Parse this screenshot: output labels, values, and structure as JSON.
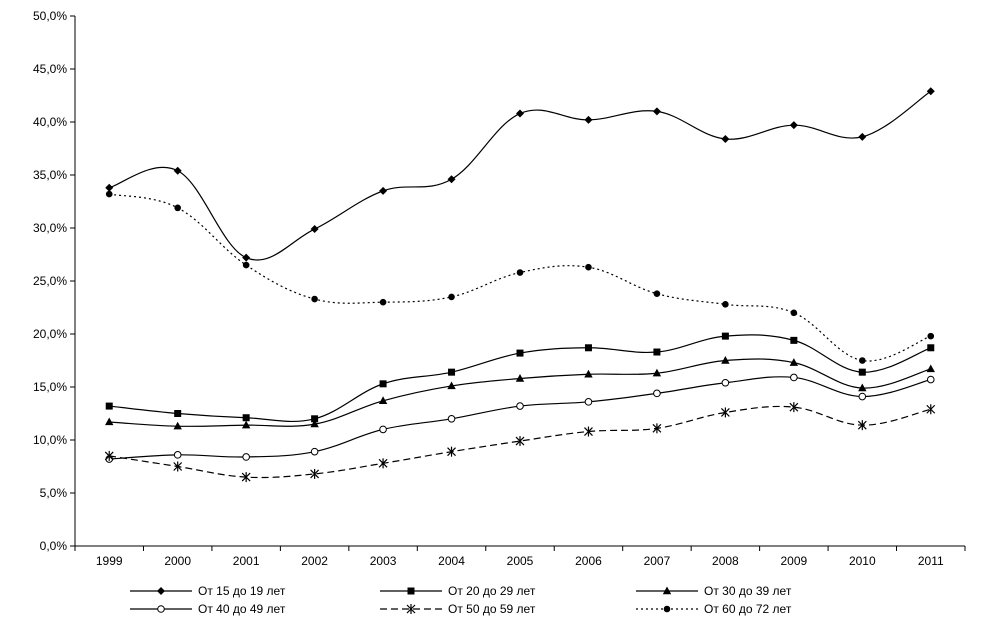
{
  "chart_data": {
    "type": "line",
    "title": "",
    "xlabel": "",
    "ylabel": "",
    "x": [
      "1999",
      "2000",
      "2001",
      "2002",
      "2003",
      "2004",
      "2005",
      "2006",
      "2007",
      "2008",
      "2009",
      "2010",
      "2011"
    ],
    "ylim": [
      0,
      50
    ],
    "yticks": [
      "0,0%",
      "5,0%",
      "10,0%",
      "15,0%",
      "20,0%",
      "25,0%",
      "30,0%",
      "35,0%",
      "40,0%",
      "45,0%",
      "50,0%"
    ],
    "grid": false,
    "legend_position": "bottom",
    "series": [
      {
        "name": "От 15 до 19 лет",
        "marker": "diamond",
        "dash": "solid",
        "values": [
          33.8,
          35.4,
          27.2,
          29.9,
          33.5,
          34.6,
          40.8,
          40.2,
          41.0,
          38.4,
          39.7,
          38.6,
          42.9
        ]
      },
      {
        "name": "От 20 до 29 лет",
        "marker": "square",
        "dash": "solid",
        "values": [
          13.2,
          12.5,
          12.1,
          12.0,
          15.3,
          16.4,
          18.2,
          18.7,
          18.3,
          19.8,
          19.4,
          16.4,
          18.7
        ]
      },
      {
        "name": "От 30 до 39 лет",
        "marker": "triangle",
        "dash": "solid",
        "values": [
          11.7,
          11.3,
          11.4,
          11.5,
          13.7,
          15.1,
          15.8,
          16.2,
          16.3,
          17.5,
          17.3,
          14.9,
          16.7
        ]
      },
      {
        "name": "От 40 до 49 лет",
        "marker": "circle-open",
        "dash": "solid",
        "values": [
          8.2,
          8.6,
          8.4,
          8.9,
          11.0,
          12.0,
          13.2,
          13.6,
          14.4,
          15.4,
          15.9,
          14.1,
          15.7
        ]
      },
      {
        "name": "От 50 до 59 лет",
        "marker": "star",
        "dash": "dashed",
        "values": [
          8.5,
          7.5,
          6.5,
          6.8,
          7.8,
          8.9,
          9.9,
          10.8,
          11.1,
          12.6,
          13.1,
          11.4,
          12.9
        ]
      },
      {
        "name": "От 60 до 72 лет",
        "marker": "circle-filled",
        "dash": "dotted",
        "values": [
          33.2,
          31.9,
          26.5,
          23.3,
          23.0,
          23.5,
          25.8,
          26.3,
          23.8,
          22.8,
          22.0,
          17.5,
          19.8
        ]
      }
    ]
  }
}
